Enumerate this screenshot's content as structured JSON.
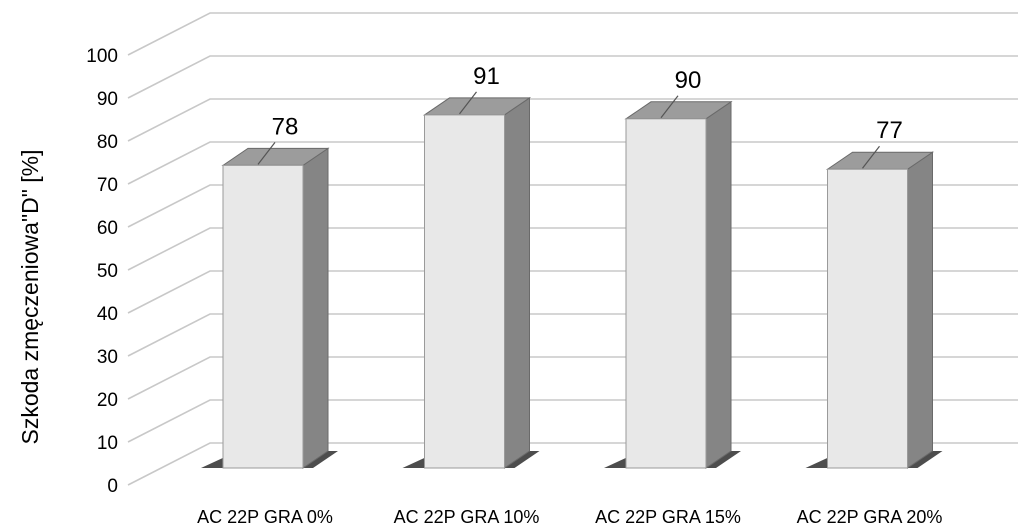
{
  "chart_data": {
    "type": "bar",
    "title": "",
    "xlabel": "",
    "ylabel": "Szkoda zmęczeniowa\"D\" [%]",
    "categories": [
      "AC 22P GRA 0%",
      "AC 22P GRA 10%",
      "AC 22P GRA 15%",
      "AC 22P GRA 20%"
    ],
    "values": [
      78,
      91,
      90,
      77
    ],
    "data_labels": [
      "78",
      "91",
      "90",
      "77"
    ],
    "yticks": [
      "0",
      "10",
      "20",
      "30",
      "40",
      "50",
      "60",
      "70",
      "80",
      "90",
      "100"
    ],
    "ylim": [
      0,
      100
    ],
    "grid": true,
    "legend": "none",
    "style": "3d-column",
    "colors": {
      "bar_front": "#e8e8e8",
      "bar_side": "#858585",
      "bar_top": "#9c9c9c",
      "grid": "#c8c8c8",
      "shadow": "#3a3a3a"
    }
  }
}
